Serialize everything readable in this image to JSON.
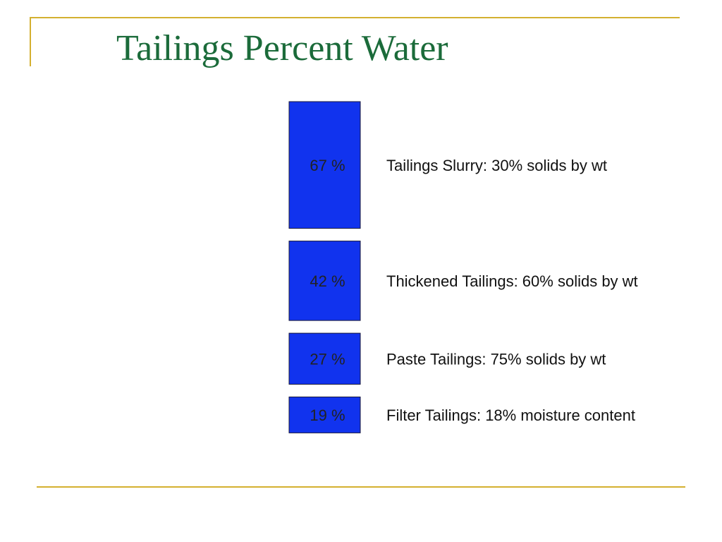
{
  "title": "Tailings Percent Water",
  "colors": {
    "bar": "#1133EE",
    "bar_border": "#1a1a3a",
    "frame": "#D4B030",
    "title": "#1B6B3A"
  },
  "chart_data": {
    "type": "bar",
    "orientation": "stacked-vertical",
    "title": "Tailings Percent Water",
    "categories": [
      "Tailings Slurry: 30% solids by wt",
      "Thickened Tailings: 60% solids by wt",
      "Paste Tailings: 75% solids by wt",
      "Filter Tailings: 18% moisture content"
    ],
    "values": [
      67,
      42,
      27,
      19
    ],
    "value_labels": [
      "67 %",
      "42 %",
      "27 %",
      "19 %"
    ],
    "units": "%",
    "grid": false,
    "legend": "none"
  }
}
